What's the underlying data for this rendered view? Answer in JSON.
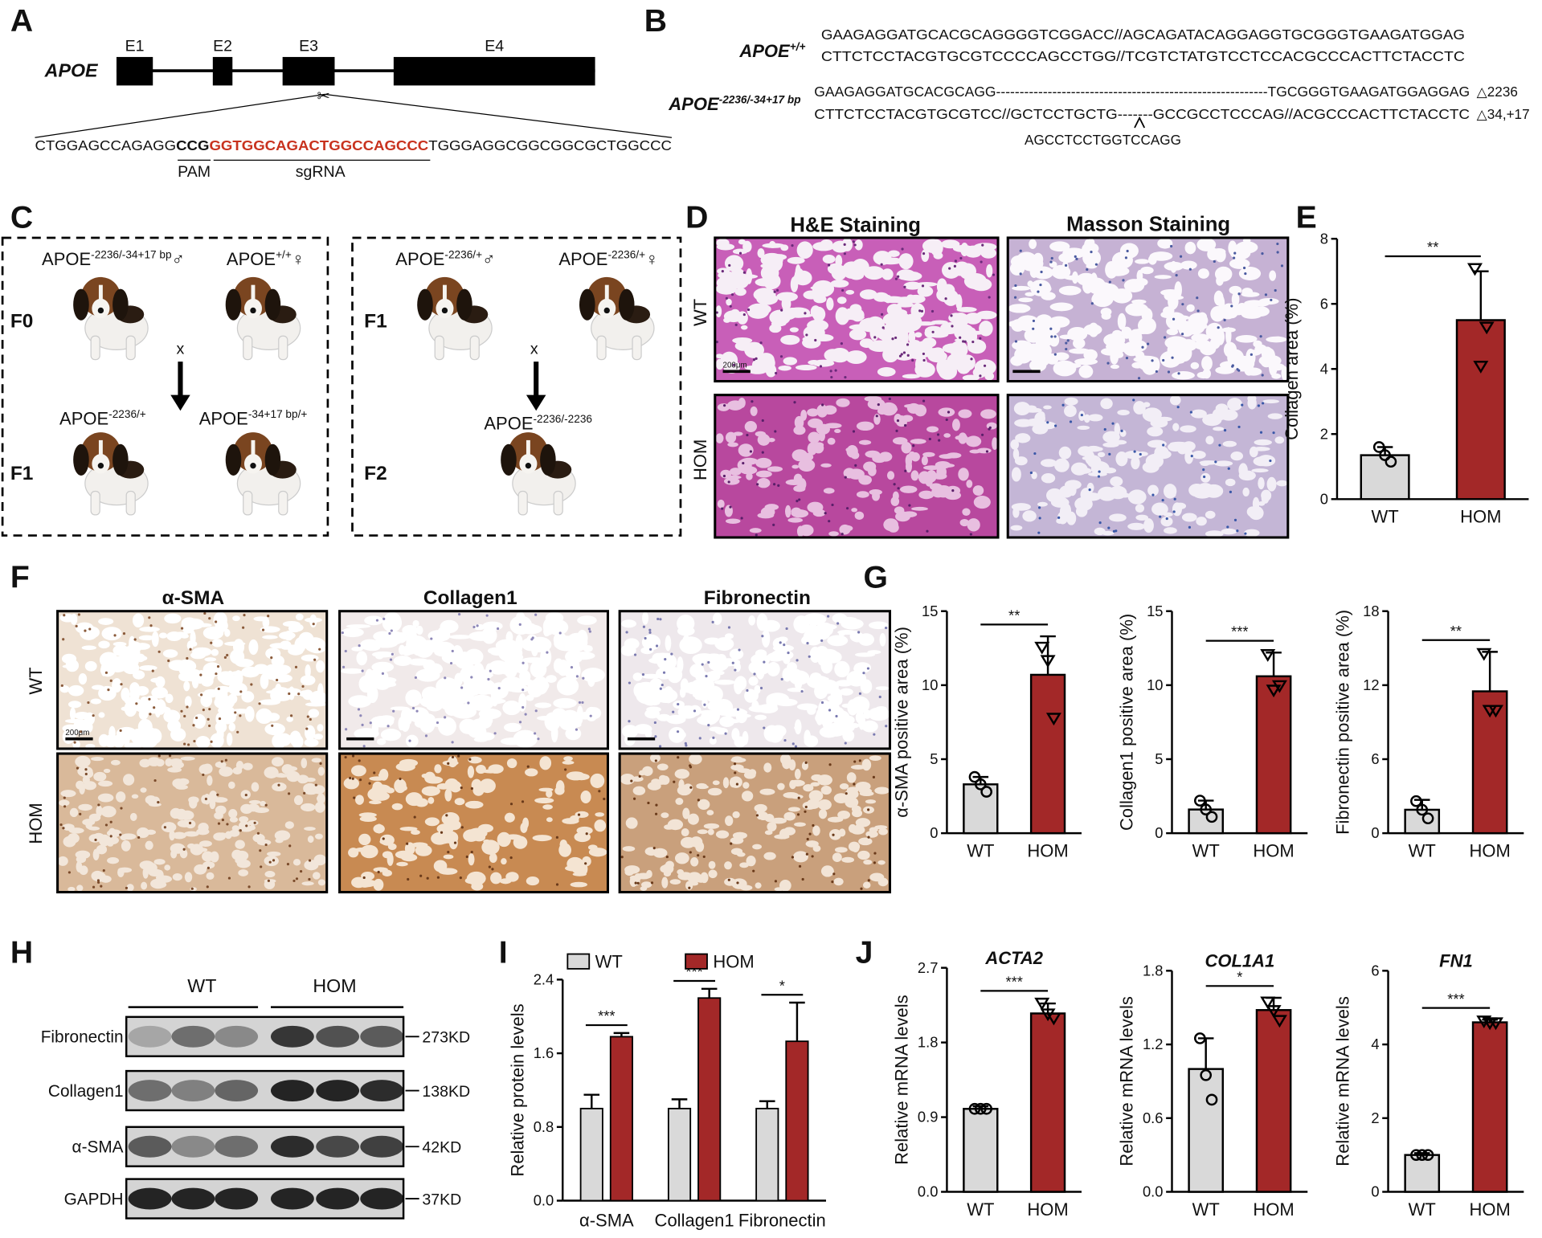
{
  "panel_labels": [
    "A",
    "B",
    "C",
    "D",
    "E",
    "F",
    "G",
    "H",
    "I",
    "J"
  ],
  "panel_a": {
    "gene": "APOE",
    "exons": [
      "E1",
      "E2",
      "E3",
      "E4"
    ],
    "sequence": {
      "left": "CTGGAGCCAGAGG",
      "pam": "CCG",
      "sgrna": "GGTGGCAGACTGGCCAGCCC",
      "right": "TGGGAGGCGGCGGCGCTGGCCC"
    },
    "pam_label": "PAM",
    "sgrna_label": "sgRNA"
  },
  "panel_b": {
    "alleles": [
      {
        "gene": "APOE",
        "genotype": "+/+",
        "lines": [
          "GAAGAGGATGCACGCAGGGGTCGGACC//AGCAGATACAGGAGGTGCGGGTGAAGATGGAG",
          "CTTCTCCTACGTGCGTCCCCAGCCTGG//TCGTCTATGTCCTCCACGCCCACTTCTACCTC"
        ]
      },
      {
        "gene": "APOE",
        "genotype": "-2236/-34+17 bp",
        "lines": [
          "GAAGAGGATGCACGCAGG----------------------------------------------------------TGCGGGTGAAGATGGAGGAG",
          "CTTCTCCTACGTGCGTCC//GCTCCTGCTG-------GCCGCCTCCCAG//ACGCCCACTTCTACCTC"
        ],
        "notes": [
          "△2236",
          "△34,+17"
        ],
        "insertion": "AGCCTCCTGGTCCAGG"
      }
    ]
  },
  "panel_c": {
    "crosses": [
      {
        "generations": [
          "F0",
          "F1"
        ],
        "parents": [
          {
            "gene": "APOE",
            "genotype": "-2236/-34+17 bp",
            "sex": "♂"
          },
          {
            "gene": "APOE",
            "genotype": "+/+",
            "sex": "♀"
          }
        ],
        "cross": "x",
        "offspring": [
          {
            "gene": "APOE",
            "genotype": "-2236/+"
          },
          {
            "gene": "APOE",
            "genotype": "-34+17 bp/+"
          }
        ]
      },
      {
        "generations": [
          "F1",
          "F2"
        ],
        "parents": [
          {
            "gene": "APOE",
            "genotype": "-2236/+",
            "sex": "♂"
          },
          {
            "gene": "APOE",
            "genotype": "-2236/+",
            "sex": "♀"
          }
        ],
        "cross": "x",
        "offspring": [
          {
            "gene": "APOE",
            "genotype": "-2236/-2236"
          }
        ]
      }
    ]
  },
  "panel_d": {
    "columns": [
      "H&E Staining",
      "Masson Staining"
    ],
    "rows": [
      "WT",
      "HOM"
    ],
    "scale_bar": "200μm"
  },
  "panel_f": {
    "columns": [
      "α-SMA",
      "Collagen1",
      "Fibronectin"
    ],
    "rows": [
      "WT",
      "HOM"
    ],
    "scale_bar": "200μm"
  },
  "panel_h": {
    "groups": [
      "WT",
      "HOM"
    ],
    "proteins": [
      "Fibronectin",
      "Collagen1",
      "α-SMA",
      "GAPDH"
    ],
    "sizes": [
      "273KD",
      "138KD",
      "42KD",
      "37KD"
    ]
  },
  "chart_data": [
    {
      "type": "bar",
      "y_label": "Collagen area (%)",
      "categories": [
        "WT",
        "HOM"
      ],
      "values": [
        1.35,
        5.5
      ],
      "errors": [
        0.25,
        1.5
      ],
      "points": [
        [
          1.6,
          1.35,
          1.15
        ],
        [
          7.1,
          4.1,
          5.3
        ]
      ],
      "colors": [
        "#d9d9d9",
        "#a32828"
      ],
      "markers": [
        "circle",
        "triangle"
      ],
      "ylim": [
        0,
        8
      ],
      "yticks": [
        0,
        2,
        4,
        6,
        8
      ],
      "significance": "**"
    },
    {
      "type": "bar",
      "y_label": "α-SMA positive area (%)",
      "categories": [
        "WT",
        "HOM"
      ],
      "values": [
        3.3,
        10.7
      ],
      "errors": [
        0.5,
        2.6
      ],
      "points": [
        [
          3.8,
          3.3,
          2.8
        ],
        [
          12.6,
          11.7,
          7.8
        ]
      ],
      "colors": [
        "#d9d9d9",
        "#a32828"
      ],
      "markers": [
        "circle",
        "triangle"
      ],
      "ylim": [
        0,
        15
      ],
      "yticks": [
        0,
        5,
        10,
        15
      ],
      "significance": "**"
    },
    {
      "type": "bar",
      "y_label": "Collagen1 positive area (%)",
      "categories": [
        "WT",
        "HOM"
      ],
      "values": [
        1.6,
        10.6
      ],
      "errors": [
        0.6,
        1.6
      ],
      "points": [
        [
          2.2,
          1.6,
          1.1
        ],
        [
          12.1,
          9.7,
          10.0
        ]
      ],
      "colors": [
        "#d9d9d9",
        "#a32828"
      ],
      "markers": [
        "circle",
        "triangle"
      ],
      "ylim": [
        0,
        15
      ],
      "yticks": [
        0,
        5,
        10,
        15
      ],
      "significance": "***"
    },
    {
      "type": "bar",
      "y_label": "Fibronectin positive area (%)",
      "categories": [
        "WT",
        "HOM"
      ],
      "values": [
        1.9,
        11.5
      ],
      "errors": [
        0.8,
        3.2
      ],
      "points": [
        [
          2.6,
          1.9,
          1.2
        ],
        [
          14.6,
          10.0,
          10.0
        ]
      ],
      "colors": [
        "#d9d9d9",
        "#a32828"
      ],
      "markers": [
        "circle",
        "triangle"
      ],
      "ylim": [
        0,
        18
      ],
      "yticks": [
        0,
        6,
        12,
        18
      ],
      "significance": "**"
    },
    {
      "type": "grouped_bar",
      "y_label": "Relative protein levels",
      "categories": [
        "α-SMA",
        "Collagen1",
        "Fibronectin"
      ],
      "series": [
        {
          "name": "WT",
          "color": "#d9d9d9",
          "values": [
            1.0,
            1.0,
            1.0
          ],
          "errors": [
            0.15,
            0.1,
            0.08
          ]
        },
        {
          "name": "HOM",
          "color": "#a32828",
          "values": [
            1.78,
            2.2,
            1.73
          ],
          "errors": [
            0.04,
            0.1,
            0.42
          ]
        }
      ],
      "legend": "top",
      "ylim": [
        0,
        2.4
      ],
      "yticks": [
        {
          "value": 0,
          "label": "0.0"
        },
        0.8,
        1.6,
        2.4
      ],
      "significance": [
        "***",
        "***",
        "*"
      ]
    },
    {
      "type": "bar",
      "title": "ACTA2",
      "y_label": "Relative mRNA levels",
      "categories": [
        "WT",
        "HOM"
      ],
      "values": [
        1.0,
        2.15
      ],
      "errors": [
        0.03,
        0.12
      ],
      "points": [
        [
          1.0,
          1.0,
          1.0
        ],
        [
          2.28,
          2.15,
          2.1
        ]
      ],
      "colors": [
        "#d9d9d9",
        "#a32828"
      ],
      "markers": [
        "circle",
        "triangle"
      ],
      "ylim": [
        0,
        2.7
      ],
      "yticks": [
        {
          "value": 0,
          "label": "0.0"
        },
        0.9,
        1.8,
        2.7
      ],
      "significance": "***"
    },
    {
      "type": "bar",
      "title": "COL1A1",
      "y_label": "Relative mRNA levels",
      "categories": [
        "WT",
        "HOM"
      ],
      "values": [
        1.0,
        1.48
      ],
      "errors": [
        0.25,
        0.1
      ],
      "points": [
        [
          1.25,
          0.95,
          0.75
        ],
        [
          1.55,
          1.48,
          1.4
        ]
      ],
      "colors": [
        "#d9d9d9",
        "#a32828"
      ],
      "markers": [
        "circle",
        "triangle"
      ],
      "ylim": [
        0,
        1.8
      ],
      "yticks": [
        {
          "value": 0,
          "label": "0.0"
        },
        0.6,
        1.2,
        1.8
      ],
      "significance": "*"
    },
    {
      "type": "bar",
      "title": "FN1",
      "y_label": "Relative mRNA levels",
      "categories": [
        "WT",
        "HOM"
      ],
      "values": [
        1.0,
        4.6
      ],
      "errors": [
        0.05,
        0.07
      ],
      "points": [
        [
          1.0,
          1.0,
          1.0
        ],
        [
          4.65,
          4.6,
          4.6
        ]
      ],
      "colors": [
        "#d9d9d9",
        "#a32828"
      ],
      "markers": [
        "circle",
        "triangle"
      ],
      "ylim": [
        0,
        6
      ],
      "yticks": [
        0,
        2,
        4,
        6
      ],
      "significance": "***"
    }
  ]
}
